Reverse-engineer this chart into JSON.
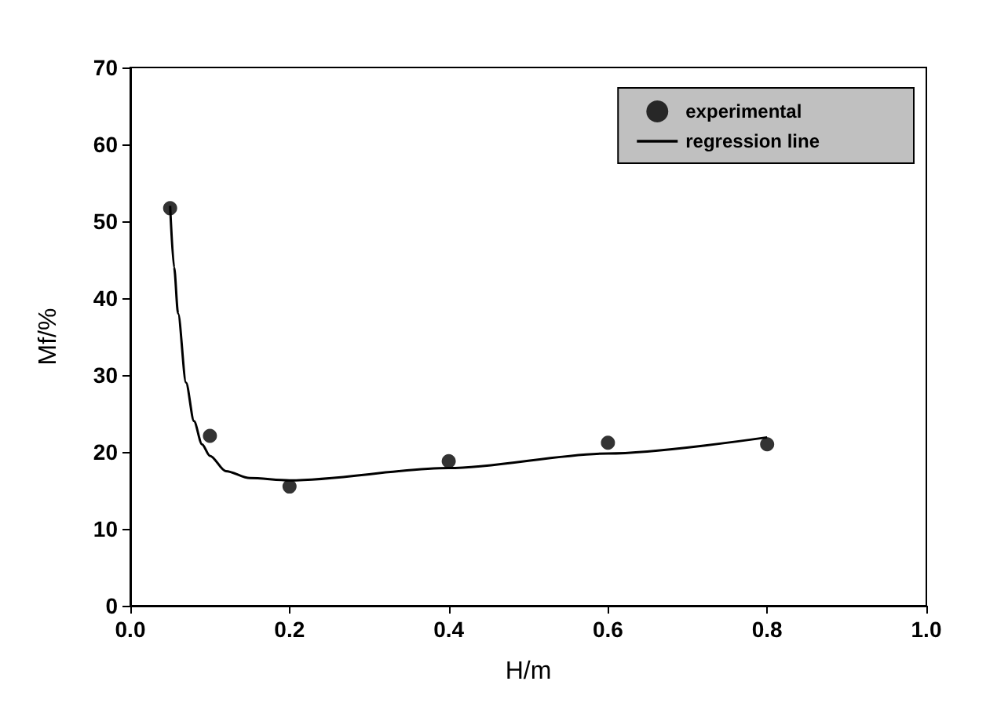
{
  "chart_data": {
    "type": "scatter",
    "xlabel": "H/m",
    "ylabel": "Mf/%",
    "xlim": [
      0,
      1
    ],
    "xticks": [
      {
        "value": 0,
        "label": "0.0"
      },
      {
        "value": 0.2,
        "label": "0.2"
      },
      {
        "value": 0.4,
        "label": "0.4"
      },
      {
        "value": 0.6,
        "label": "0.6"
      },
      {
        "value": 0.8,
        "label": "0.8"
      },
      {
        "value": 1,
        "label": "1.0"
      }
    ],
    "ylim": [
      0,
      70
    ],
    "yticks": [
      0,
      10,
      20,
      30,
      40,
      50,
      60,
      70
    ],
    "grid": false,
    "legend": "top right",
    "series": [
      {
        "name": "experimental",
        "marker": "circle",
        "color": "#000000",
        "x": [
          0.05,
          0.1,
          0.2,
          0.4,
          0.6,
          0.8
        ],
        "values": [
          51.7,
          22.1,
          15.5,
          18.8,
          21.2,
          21.0
        ]
      },
      {
        "name": "regression line",
        "type": "line",
        "marker": "none",
        "line_style": "solid",
        "color": "#000000",
        "x": [
          0.05,
          0.055,
          0.06,
          0.07,
          0.08,
          0.09,
          0.1,
          0.12,
          0.15,
          0.2,
          0.4,
          0.6,
          0.8
        ],
        "values": [
          52,
          44,
          38,
          29,
          24,
          21,
          19.5,
          17.5,
          16.6,
          16.3,
          17.9,
          19.8,
          21.9
        ]
      }
    ]
  }
}
